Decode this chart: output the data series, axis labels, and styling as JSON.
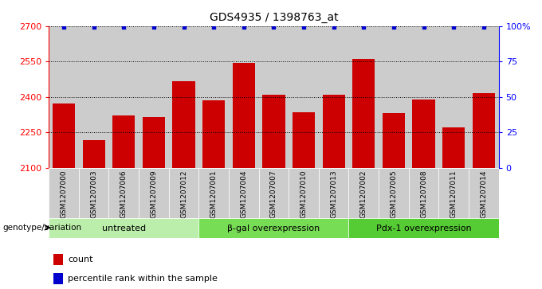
{
  "title": "GDS4935 / 1398763_at",
  "samples": [
    "GSM1207000",
    "GSM1207003",
    "GSM1207006",
    "GSM1207009",
    "GSM1207012",
    "GSM1207001",
    "GSM1207004",
    "GSM1207007",
    "GSM1207010",
    "GSM1207013",
    "GSM1207002",
    "GSM1207005",
    "GSM1207008",
    "GSM1207011",
    "GSM1207014"
  ],
  "counts": [
    2370,
    2215,
    2320,
    2315,
    2465,
    2385,
    2545,
    2410,
    2335,
    2410,
    2560,
    2330,
    2390,
    2270,
    2415
  ],
  "groups": [
    {
      "label": "untreated",
      "start": 0,
      "end": 5,
      "color": "#bbeeaa"
    },
    {
      "label": "β-gal overexpression",
      "start": 5,
      "end": 10,
      "color": "#77dd55"
    },
    {
      "label": "Pdx-1 overexpression",
      "start": 10,
      "end": 15,
      "color": "#55cc33"
    }
  ],
  "bar_color": "#cc0000",
  "dot_color": "#0000cc",
  "ylim_left": [
    2100,
    2700
  ],
  "ylim_right": [
    0,
    100
  ],
  "yticks_left": [
    2100,
    2250,
    2400,
    2550,
    2700
  ],
  "yticks_right": [
    0,
    25,
    50,
    75,
    100
  ],
  "ytick_labels_right": [
    "0",
    "25",
    "50",
    "75",
    "100%"
  ],
  "grid_values": [
    2250,
    2400,
    2550
  ],
  "bar_bg_color": "#cccccc",
  "legend_count_label": "count",
  "legend_percentile_label": "percentile rank within the sample",
  "genotype_label": "genotype/variation"
}
